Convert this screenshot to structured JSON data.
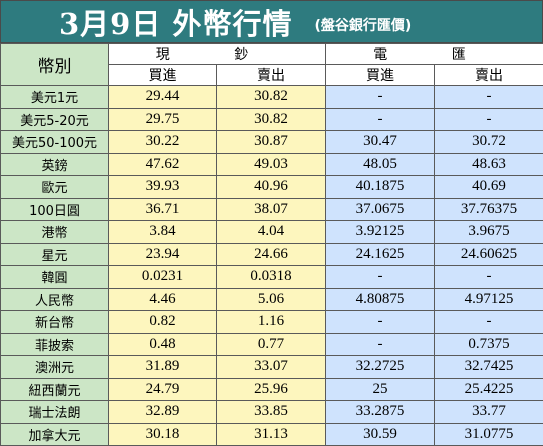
{
  "title": "3月9日 外幣行情",
  "source": "(盤谷銀行匯價)",
  "headers": {
    "currency": "幣別",
    "cash": "現 鈔",
    "wire": "電 匯",
    "buy": "買進",
    "sell": "賣出"
  },
  "rows": [
    {
      "name": "美元1元",
      "cash_buy": "29.44",
      "cash_sell": "30.82",
      "wire_buy": "-",
      "wire_sell": "-"
    },
    {
      "name": "美元5-20元",
      "cash_buy": "29.75",
      "cash_sell": "30.82",
      "wire_buy": "-",
      "wire_sell": "-"
    },
    {
      "name": "美元50-100元",
      "cash_buy": "30.22",
      "cash_sell": "30.87",
      "wire_buy": "30.47",
      "wire_sell": "30.72"
    },
    {
      "name": "英鎊",
      "cash_buy": "47.62",
      "cash_sell": "49.03",
      "wire_buy": "48.05",
      "wire_sell": "48.63"
    },
    {
      "name": "歐元",
      "cash_buy": "39.93",
      "cash_sell": "40.96",
      "wire_buy": "40.1875",
      "wire_sell": "40.69"
    },
    {
      "name": "100日圓",
      "cash_buy": "36.71",
      "cash_sell": "38.07",
      "wire_buy": "37.0675",
      "wire_sell": "37.76375"
    },
    {
      "name": "港幣",
      "cash_buy": "3.84",
      "cash_sell": "4.04",
      "wire_buy": "3.92125",
      "wire_sell": "3.9675"
    },
    {
      "name": "星元",
      "cash_buy": "23.94",
      "cash_sell": "24.66",
      "wire_buy": "24.1625",
      "wire_sell": "24.60625"
    },
    {
      "name": "韓圓",
      "cash_buy": "0.0231",
      "cash_sell": "0.0318",
      "wire_buy": "-",
      "wire_sell": "-"
    },
    {
      "name": "人民幣",
      "cash_buy": "4.46",
      "cash_sell": "5.06",
      "wire_buy": "4.80875",
      "wire_sell": "4.97125"
    },
    {
      "name": "新台幣",
      "cash_buy": "0.82",
      "cash_sell": "1.16",
      "wire_buy": "-",
      "wire_sell": "-"
    },
    {
      "name": "菲披索",
      "cash_buy": "0.48",
      "cash_sell": "0.77",
      "wire_buy": "-",
      "wire_sell": "0.7375"
    },
    {
      "name": "澳洲元",
      "cash_buy": "31.89",
      "cash_sell": "33.07",
      "wire_buy": "32.2725",
      "wire_sell": "32.7425"
    },
    {
      "name": "紐西蘭元",
      "cash_buy": "24.79",
      "cash_sell": "25.96",
      "wire_buy": "25",
      "wire_sell": "25.4225"
    },
    {
      "name": "瑞士法朗",
      "cash_buy": "32.89",
      "cash_sell": "33.85",
      "wire_buy": "33.2875",
      "wire_sell": "33.77"
    },
    {
      "name": "加拿大元",
      "cash_buy": "30.18",
      "cash_sell": "31.13",
      "wire_buy": "30.59",
      "wire_sell": "31.0775"
    }
  ],
  "colors": {
    "title_bg": "#2e7b7f",
    "currency_bg": "#cce6c6",
    "cash_bg": "#fdf6be",
    "wire_bg": "#cfe3fd"
  }
}
